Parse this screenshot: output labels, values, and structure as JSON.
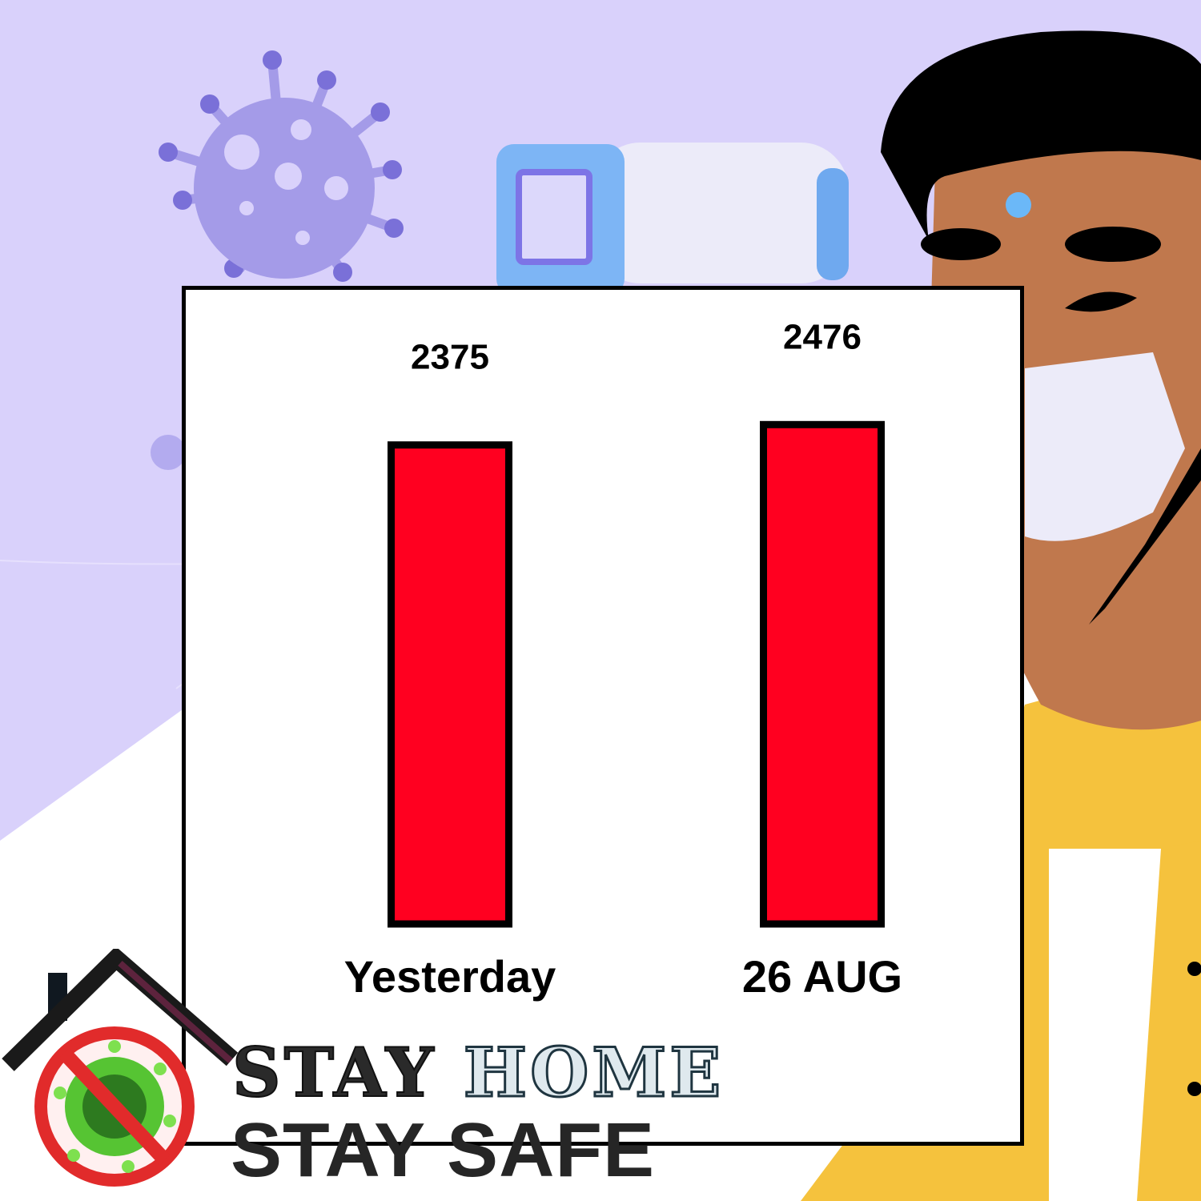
{
  "colors": {
    "background": "#d9d1fb",
    "bar_fill": "#ff0020",
    "bar_stroke": "#000000",
    "panel": "#ffffff"
  },
  "chart_data": {
    "type": "bar",
    "categories": [
      "Yesterday",
      "26 AUG"
    ],
    "values": [
      2375,
      2476
    ],
    "title": "",
    "xlabel": "",
    "ylabel": ""
  },
  "logo": {
    "line1_a": "STAY",
    "line1_b": "HOME",
    "line2": "STAY SAFE"
  },
  "icons": [
    "virus-illustration",
    "thermometer-gun-illustration",
    "masked-person-illustration",
    "house-icon",
    "no-virus-icon"
  ]
}
